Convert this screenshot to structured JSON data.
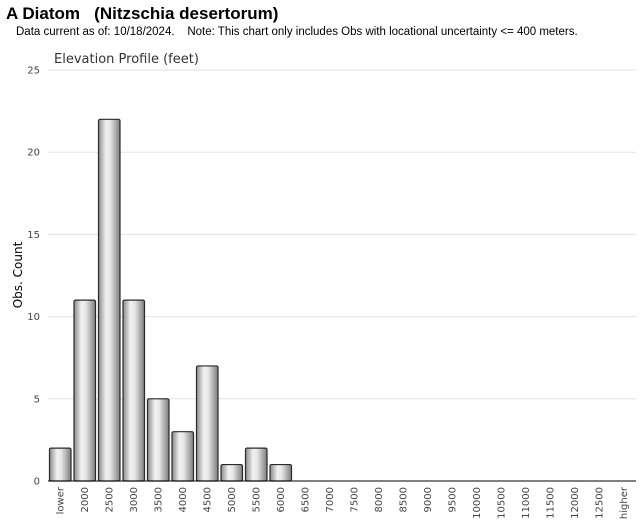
{
  "header": {
    "title": "A Diatom   (Nitzschia desertorum)",
    "note": "Data current as of: 10/18/2024.    Note: This chart only includes Obs with locational uncertainty <= 400 meters."
  },
  "chart_data": {
    "type": "bar",
    "title": "Elevation Profile (feet)",
    "xlabel": "",
    "ylabel": "Obs. Count",
    "ylim": [
      0,
      25
    ],
    "yticks": [
      0,
      5,
      10,
      15,
      20,
      25
    ],
    "grid": true,
    "categories": [
      "lower",
      "2000",
      "2500",
      "3000",
      "3500",
      "4000",
      "4500",
      "5000",
      "5500",
      "6000",
      "6500",
      "7000",
      "7500",
      "8000",
      "8500",
      "9000",
      "9500",
      "10000",
      "10500",
      "11000",
      "11500",
      "12000",
      "12500",
      "higher"
    ],
    "values": [
      2,
      11,
      22,
      11,
      5,
      3,
      7,
      1,
      2,
      1,
      0,
      0,
      0,
      0,
      0,
      0,
      0,
      0,
      0,
      0,
      0,
      0,
      0,
      0
    ],
    "bar_color": "#c8c8c8"
  }
}
